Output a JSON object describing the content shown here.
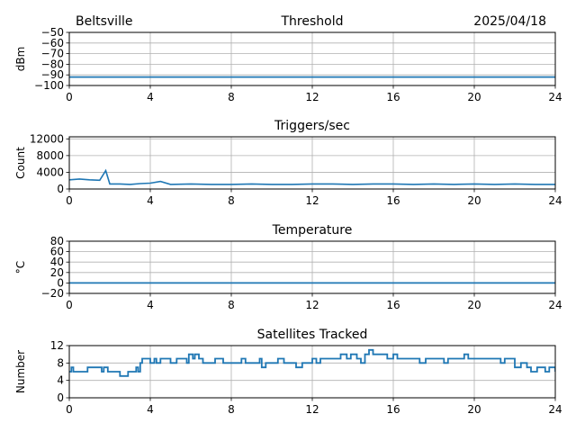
{
  "header": {
    "station": "Beltsville",
    "date": "2025/04/18"
  },
  "chart_data": [
    {
      "type": "line",
      "title": "Threshold",
      "xlabel": "",
      "ylabel": "dBm",
      "xlim": [
        0,
        24
      ],
      "ylim": [
        -100,
        -50
      ],
      "xticks": [
        0,
        4,
        8,
        12,
        16,
        20,
        24
      ],
      "yticks": [
        -100,
        -90,
        -80,
        -70,
        -60,
        -50
      ],
      "ytick_labels": [
        "−100",
        "−90",
        "−80",
        "−70",
        "−60",
        "−50"
      ],
      "grid": true,
      "color": "#1f77b4",
      "series": [
        {
          "x": [
            0,
            2,
            4,
            6,
            8,
            10,
            12,
            14,
            16,
            18,
            20,
            22,
            24
          ],
          "y": [
            -92,
            -92,
            -92,
            -92,
            -92,
            -92,
            -92,
            -92,
            -92,
            -92,
            -92,
            -92,
            -92
          ]
        }
      ]
    },
    {
      "type": "line",
      "title": "Triggers/sec",
      "xlabel": "",
      "ylabel": "Count",
      "xlim": [
        0,
        24
      ],
      "ylim": [
        0,
        12500
      ],
      "xticks": [
        0,
        4,
        8,
        12,
        16,
        20,
        24
      ],
      "yticks": [
        0,
        4000,
        8000,
        12000
      ],
      "ytick_labels": [
        "0",
        "4000",
        "8000",
        "12000"
      ],
      "grid": true,
      "color": "#1f77b4",
      "series": [
        {
          "x": [
            0,
            0.5,
            1,
            1.5,
            1.8,
            2,
            2.5,
            3,
            3.5,
            4,
            4.5,
            5,
            6,
            7,
            8,
            9,
            10,
            11,
            12,
            13,
            14,
            15,
            16,
            17,
            18,
            19,
            20,
            21,
            22,
            23,
            24
          ],
          "y": [
            2200,
            2400,
            2200,
            2100,
            4400,
            1200,
            1200,
            1100,
            1300,
            1400,
            1800,
            1100,
            1200,
            1100,
            1100,
            1200,
            1100,
            1100,
            1200,
            1200,
            1100,
            1200,
            1200,
            1100,
            1200,
            1100,
            1200,
            1100,
            1200,
            1100,
            1100
          ]
        }
      ]
    },
    {
      "type": "line",
      "title": "Temperature",
      "xlabel": "",
      "ylabel": "°C",
      "xlim": [
        0,
        24
      ],
      "ylim": [
        -20,
        80
      ],
      "xticks": [
        0,
        4,
        8,
        12,
        16,
        20,
        24
      ],
      "yticks": [
        -20,
        0,
        20,
        40,
        60,
        80
      ],
      "ytick_labels": [
        "−20",
        "0",
        "20",
        "40",
        "60",
        "80"
      ],
      "grid": true,
      "color": "#1f77b4",
      "series": [
        {
          "x": [
            0,
            24
          ],
          "y": [
            0,
            0
          ]
        }
      ]
    },
    {
      "type": "line",
      "title": "Satellites Tracked",
      "xlabel": "",
      "ylabel": "Number",
      "xlim": [
        0,
        24
      ],
      "ylim": [
        0,
        12
      ],
      "xticks": [
        0,
        4,
        8,
        12,
        16,
        20,
        24
      ],
      "yticks": [
        0,
        4,
        8,
        12
      ],
      "ytick_labels": [
        "0",
        "4",
        "8",
        "12"
      ],
      "grid": true,
      "color": "#1f77b4",
      "series": [
        {
          "step": true,
          "x": [
            0,
            0.1,
            0.2,
            0.7,
            0.9,
            1.0,
            1.3,
            1.6,
            1.7,
            1.9,
            2.0,
            2.3,
            2.5,
            2.6,
            2.9,
            3.0,
            3.3,
            3.4,
            3.5,
            3.6,
            3.7,
            4.0,
            4.2,
            4.3,
            4.5,
            4.7,
            5.0,
            5.3,
            5.5,
            5.8,
            5.9,
            6.1,
            6.2,
            6.4,
            6.6,
            6.8,
            7.2,
            7.6,
            7.8,
            8.3,
            8.5,
            8.7,
            9.0,
            9.4,
            9.5,
            9.7,
            10.0,
            10.3,
            10.6,
            10.7,
            11.0,
            11.2,
            11.5,
            11.7,
            12.0,
            12.2,
            12.4,
            12.6,
            12.9,
            13.2,
            13.4,
            13.7,
            13.9,
            14.2,
            14.4,
            14.6,
            14.7,
            14.8,
            15.0,
            15.5,
            15.7,
            16.0,
            16.2,
            16.6,
            16.9,
            17.1,
            17.3,
            17.6,
            17.8,
            18.0,
            18.3,
            18.5,
            18.7,
            19.0,
            19.3,
            19.5,
            19.7,
            20.0,
            20.3,
            20.6,
            20.9,
            21.1,
            21.3,
            21.5,
            21.7,
            22.0,
            22.3,
            22.6,
            22.8,
            23.1,
            23.3,
            23.5,
            23.7,
            24.0
          ],
          "y": [
            6,
            7,
            6,
            6,
            7,
            7,
            7,
            6,
            7,
            6,
            6,
            6,
            5,
            5,
            6,
            6,
            7,
            6,
            8,
            9,
            9,
            8,
            9,
            8,
            9,
            9,
            8,
            9,
            9,
            8,
            10,
            9,
            10,
            9,
            8,
            8,
            9,
            8,
            8,
            8,
            9,
            8,
            8,
            9,
            7,
            8,
            8,
            9,
            8,
            8,
            8,
            7,
            8,
            8,
            9,
            8,
            9,
            9,
            9,
            9,
            10,
            9,
            10,
            9,
            8,
            10,
            10,
            11,
            10,
            10,
            9,
            10,
            9,
            9,
            9,
            9,
            8,
            9,
            9,
            9,
            9,
            8,
            9,
            9,
            9,
            10,
            9,
            9,
            9,
            9,
            9,
            9,
            8,
            9,
            9,
            7,
            8,
            7,
            6,
            7,
            7,
            6,
            7,
            6
          ]
        }
      ]
    }
  ]
}
